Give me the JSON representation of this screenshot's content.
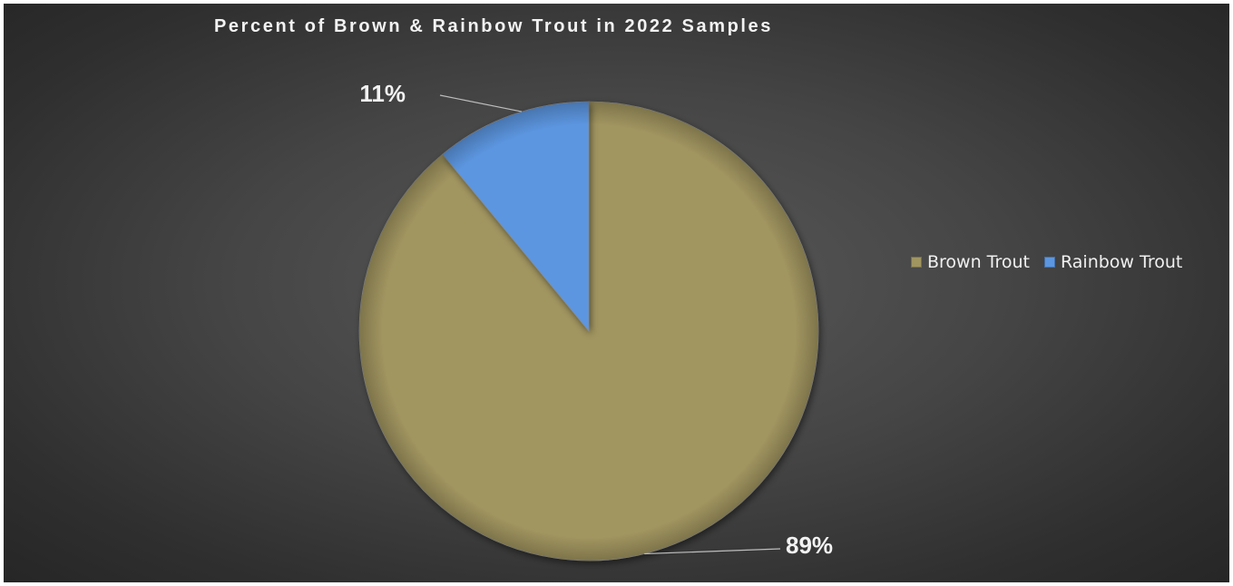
{
  "chart_data": {
    "type": "pie",
    "title": "Percent of Brown & Rainbow Trout in 2022 Samples",
    "start_angle_deg": 0,
    "direction": "clockwise",
    "series": [
      {
        "name": "Brown Trout",
        "value": 89,
        "label": "89%",
        "color": "#a19560"
      },
      {
        "name": "Rainbow Trout",
        "value": 11,
        "label": "11%",
        "color": "#5c96e0"
      }
    ],
    "legend_position": "right"
  }
}
